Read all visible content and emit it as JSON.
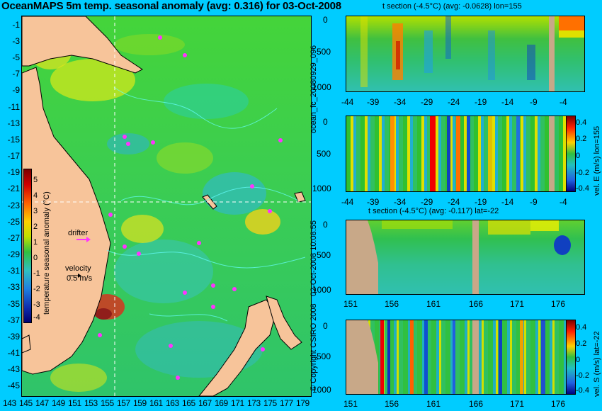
{
  "map": {
    "title": "OceanMAPS 5m temp. seasonal anomaly (avg: 0.316) for 03-Oct-2008",
    "lat_ticks": [
      "-1",
      "-3",
      "-5",
      "-7",
      "-9",
      "-11",
      "-13",
      "-15",
      "-17",
      "-19",
      "-21",
      "-23",
      "-25",
      "-27",
      "-29",
      "-31",
      "-33",
      "-35",
      "-37",
      "-39",
      "-41",
      "-43",
      "-45"
    ],
    "lon_ticks": [
      "143",
      "145",
      "147",
      "149",
      "151",
      "153",
      "155",
      "157",
      "159",
      "161",
      "163",
      "165",
      "167",
      "169",
      "171",
      "173",
      "175",
      "177",
      "179"
    ],
    "colorbar": {
      "label": "temperature seasonal anomaly (°C)",
      "ticks": [
        "5",
        "4",
        "3",
        "2",
        "1",
        "0",
        "-1",
        "-2",
        "-3",
        "-4"
      ]
    },
    "legend": {
      "drifter_label": "drifter",
      "velocity_label": "velocity",
      "velocity_value": "0.5 m/s"
    }
  },
  "panels": [
    {
      "title": "t section (-4.5°C) (avg: -0.0628) lon=155",
      "y_ticks": [
        "0",
        "500",
        "1000"
      ],
      "x_ticks": [
        "-44",
        "-39",
        "-34",
        "-29",
        "-24",
        "-19",
        "-14",
        "-9",
        "-4"
      ]
    },
    {
      "title": "",
      "y_ticks": [
        "0",
        "500",
        "1000"
      ],
      "x_ticks": [
        "-44",
        "-39",
        "-34",
        "-29",
        "-24",
        "-19",
        "-14",
        "-9",
        "-4"
      ],
      "colorbar_label": "vel. E (m/s) lon=155",
      "colorbar_ticks": [
        "0.4",
        "0.2",
        "0",
        "-0.2",
        "-0.4"
      ]
    },
    {
      "title": "t section (-4.5°C) (avg: -0.117) lat=-22",
      "y_ticks": [
        "0",
        "500",
        "1000"
      ],
      "x_ticks": [
        "151",
        "156",
        "161",
        "166",
        "171",
        "176"
      ]
    },
    {
      "title": "",
      "y_ticks": [
        "0",
        "500",
        "1000"
      ],
      "x_ticks": [
        "151",
        "156",
        "161",
        "166",
        "171",
        "176"
      ],
      "colorbar_label": "vel. S (m/s) lat=-22",
      "colorbar_ticks": [
        "0.4",
        "0.2",
        "0",
        "-0.2",
        "-0.4"
      ]
    }
  ],
  "side_labels": {
    "forecast_id": "ocean_fc_20080929_096",
    "run_time": "02-Oct-2008 10:08:55",
    "copyright": "© Copyright CSIRO 2008"
  }
}
